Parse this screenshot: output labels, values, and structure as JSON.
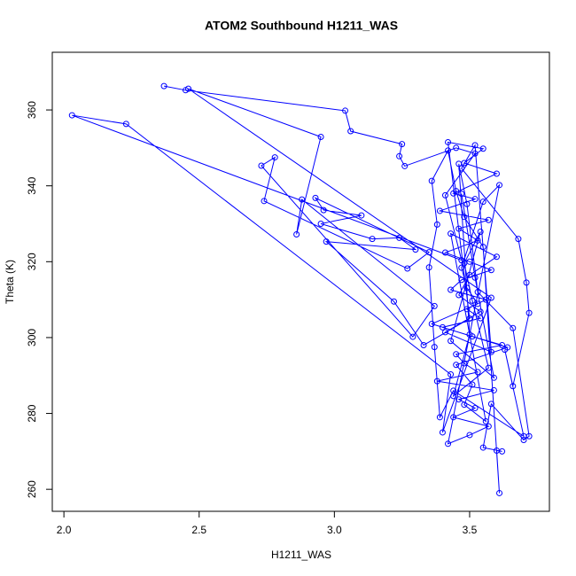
{
  "chart_data": {
    "type": "line",
    "marker": "circle",
    "color": "#0000ff",
    "title": "ATOM2 Southbound H1211_WAS",
    "x_label": "H1211_WAS",
    "y_label": "Theta (K)",
    "xlim": [
      1.957,
      3.795
    ],
    "ylim": [
      254.2,
      375.2
    ],
    "xticks": [
      {
        "value": 2,
        "label": "2.0"
      },
      2.5,
      {
        "value": 3,
        "label": "3.0"
      },
      3.5
    ],
    "yticks": [
      260,
      280,
      300,
      320,
      340,
      360
    ],
    "x": [
      2.37,
      2.45,
      3.04,
      3.06,
      3.25,
      3.24,
      3.26,
      3.45,
      3.52,
      3.41,
      3.47,
      2.03,
      2.23,
      3.43,
      3.4,
      3.58,
      2.46,
      2.95,
      2.86,
      2.88,
      3.37,
      3.29,
      2.73,
      2.78,
      2.74,
      3.27,
      3.35,
      2.93,
      2.96,
      3.1,
      2.95,
      3.14,
      3.24,
      3.3,
      2.97,
      3.22,
      3.33,
      3.5,
      3.42,
      3.55,
      3.48,
      3.6,
      3.44,
      3.52,
      3.39,
      3.57,
      3.46,
      3.53,
      3.41,
      3.5,
      3.58,
      3.47,
      3.43,
      3.56,
      3.49,
      3.54,
      3.4,
      3.51,
      3.62,
      3.45,
      3.48,
      3.53,
      3.38,
      3.59,
      3.46,
      3.52,
      3.44,
      3.57,
      3.5,
      3.42,
      3.61,
      3.55,
      3.47,
      3.49,
      3.53,
      3.36,
      3.64,
      3.45,
      3.51,
      3.48,
      3.56,
      3.43,
      3.6,
      3.5,
      3.46,
      3.54,
      3.41,
      3.58,
      3.52,
      3.47,
      3.68,
      3.71,
      3.72,
      3.66,
      3.63,
      3.7,
      3.44,
      3.39,
      3.37,
      3.35,
      3.38,
      3.36,
      3.42,
      3.45,
      3.48,
      3.55,
      3.61,
      3.6,
      3.62,
      3.55,
      3.58,
      3.7,
      3.72,
      3.66,
      3.53,
      3.49,
      3.46,
      3.5,
      3.44,
      3.57,
      3.51,
      3.48,
      3.54,
      3.43,
      3.59,
      3.52,
      3.47
    ],
    "values": [
      366.3,
      365.2,
      359.8,
      354.4,
      351.0,
      347.8,
      345.2,
      350.0,
      348.5,
      337.5,
      320.4,
      358.6,
      356.3,
      290.3,
      275.0,
      310.5,
      365.6,
      352.9,
      327.2,
      336.4,
      308.3,
      300.2,
      345.3,
      347.5,
      336.0,
      318.2,
      322.5,
      336.8,
      333.6,
      332.2,
      330.0,
      326.0,
      326.3,
      323.2,
      325.3,
      309.5,
      298.0,
      305.0,
      351.5,
      349.8,
      346.0,
      343.2,
      338.0,
      336.5,
      333.4,
      331.0,
      328.7,
      325.6,
      322.4,
      320.0,
      317.8,
      315.2,
      312.6,
      310.0,
      307.5,
      305.1,
      302.7,
      300.3,
      298.0,
      295.6,
      293.2,
      290.9,
      288.5,
      286.1,
      283.7,
      281.4,
      279.0,
      276.6,
      274.3,
      272.0,
      340.2,
      335.8,
      318.4,
      313.1,
      308.9,
      303.6,
      297.4,
      292.8,
      287.6,
      282.3,
      277.9,
      327.4,
      321.3,
      316.5,
      311.2,
      306.8,
      301.4,
      296.2,
      350.7,
      344.6,
      326.0,
      314.5,
      306.5,
      287.2,
      296.8,
      274.0,
      286.0,
      279.0,
      297.5,
      318.5,
      329.8,
      341.3,
      349.3,
      338.6,
      331.8,
      323.9,
      259.0,
      270.2,
      270.0,
      271.0,
      282.5,
      273.0,
      274.0,
      302.5,
      312.0,
      335.2,
      345.8,
      300.8,
      284.6,
      292.0,
      309.7,
      319.6,
      327.9,
      299.1,
      289.4,
      315.8,
      337.9
    ]
  }
}
